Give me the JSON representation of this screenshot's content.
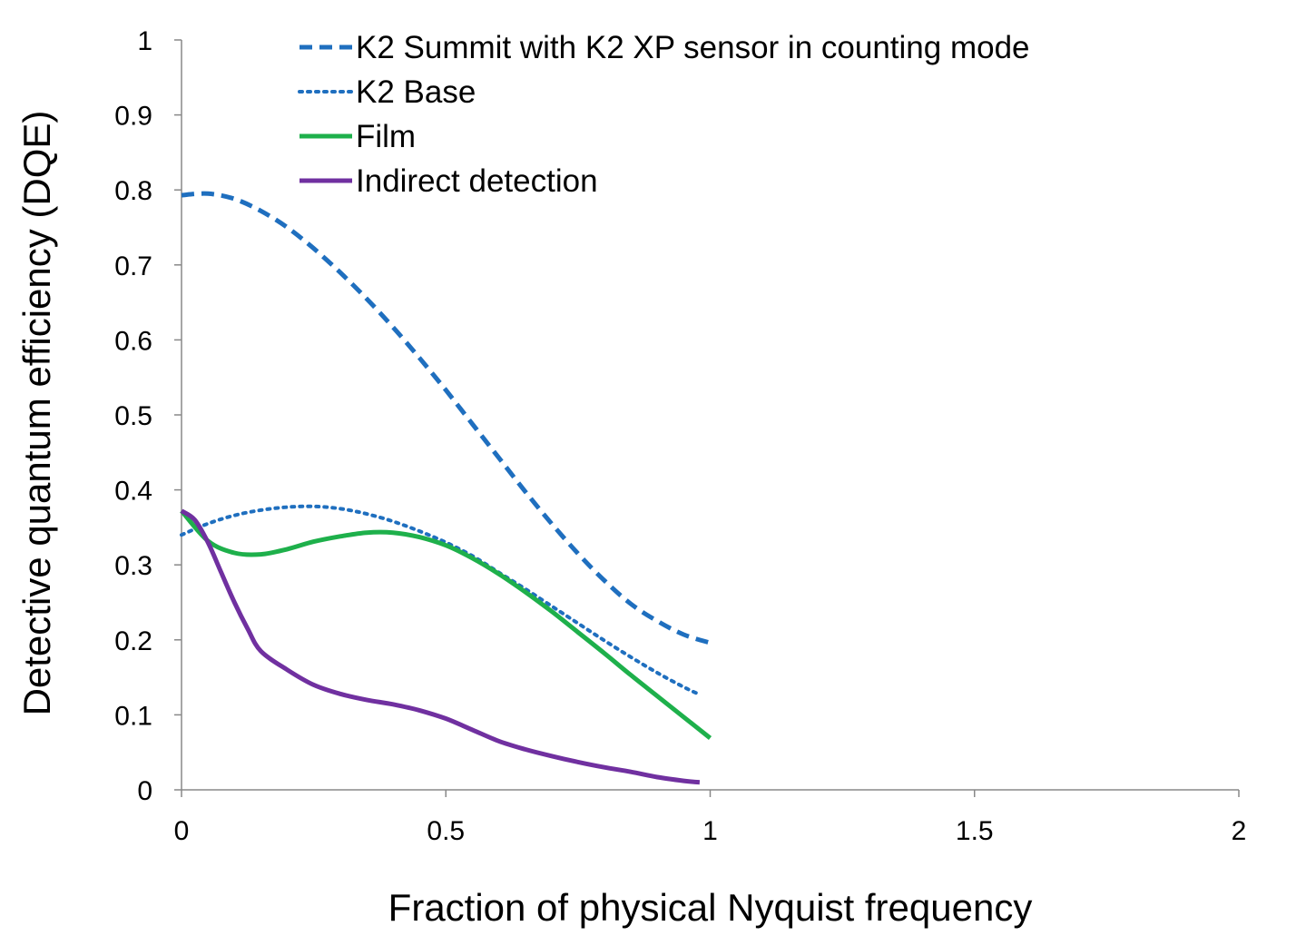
{
  "chart_data": {
    "type": "line",
    "xlabel": "Fraction of physical Nyquist frequency",
    "ylabel": "Detective quantum efficiency (DQE)",
    "xlim": [
      0,
      2
    ],
    "ylim": [
      0,
      1
    ],
    "x_ticks": [
      0,
      0.5,
      1,
      1.5,
      2
    ],
    "x_tick_labels": [
      "0",
      "0.5",
      "1",
      "1.5",
      "2"
    ],
    "y_ticks": [
      0,
      0.1,
      0.2,
      0.3,
      0.4,
      0.5,
      0.6,
      0.7,
      0.8,
      0.9,
      1
    ],
    "y_tick_labels": [
      "0",
      "0.1",
      "0.2",
      "0.3",
      "0.4",
      "0.5",
      "0.6",
      "0.7",
      "0.8",
      "0.9",
      "1"
    ],
    "grid": false,
    "legend_position": "top-center",
    "series": [
      {
        "name": "K2 Summit with K2 XP sensor in counting mode",
        "style": "dashed",
        "color": "#1f6fbf",
        "x": [
          0,
          0.05,
          0.1,
          0.15,
          0.2,
          0.25,
          0.3,
          0.35,
          0.4,
          0.45,
          0.5,
          0.55,
          0.6,
          0.65,
          0.7,
          0.75,
          0.8,
          0.85,
          0.9,
          0.95,
          1.0
        ],
        "y": [
          0.793,
          0.795,
          0.788,
          0.772,
          0.75,
          0.722,
          0.69,
          0.655,
          0.617,
          0.576,
          0.533,
          0.488,
          0.443,
          0.398,
          0.355,
          0.315,
          0.279,
          0.248,
          0.225,
          0.207,
          0.196
        ]
      },
      {
        "name": "K2 Base",
        "style": "dotted",
        "color": "#1f6fbf",
        "x": [
          0,
          0.05,
          0.1,
          0.15,
          0.2,
          0.25,
          0.3,
          0.35,
          0.4,
          0.45,
          0.5,
          0.55,
          0.6,
          0.65,
          0.7,
          0.75,
          0.8,
          0.85,
          0.9,
          0.95,
          0.98
        ],
        "y": [
          0.34,
          0.355,
          0.366,
          0.373,
          0.377,
          0.378,
          0.375,
          0.368,
          0.358,
          0.345,
          0.33,
          0.312,
          0.29,
          0.268,
          0.245,
          0.222,
          0.199,
          0.177,
          0.156,
          0.137,
          0.127
        ]
      },
      {
        "name": "Film",
        "style": "solid",
        "color": "#1eb04b",
        "x": [
          0,
          0.05,
          0.1,
          0.15,
          0.2,
          0.25,
          0.3,
          0.35,
          0.4,
          0.45,
          0.5,
          0.55,
          0.6,
          0.65,
          0.7,
          0.75,
          0.8,
          0.85,
          0.9,
          0.95,
          1.0
        ],
        "y": [
          0.372,
          0.332,
          0.316,
          0.314,
          0.321,
          0.331,
          0.338,
          0.343,
          0.343,
          0.337,
          0.326,
          0.309,
          0.288,
          0.264,
          0.238,
          0.21,
          0.182,
          0.153,
          0.125,
          0.097,
          0.069
        ]
      },
      {
        "name": "Indirect detection",
        "style": "solid",
        "color": "#7030a0",
        "x": [
          0,
          0.025,
          0.05,
          0.075,
          0.1,
          0.125,
          0.15,
          0.2,
          0.25,
          0.3,
          0.35,
          0.4,
          0.45,
          0.5,
          0.55,
          0.6,
          0.65,
          0.7,
          0.75,
          0.8,
          0.85,
          0.9,
          0.95,
          0.98
        ],
        "y": [
          0.372,
          0.36,
          0.33,
          0.29,
          0.25,
          0.215,
          0.185,
          0.16,
          0.14,
          0.128,
          0.12,
          0.114,
          0.106,
          0.095,
          0.08,
          0.065,
          0.054,
          0.045,
          0.037,
          0.03,
          0.024,
          0.017,
          0.012,
          0.01
        ]
      }
    ]
  }
}
